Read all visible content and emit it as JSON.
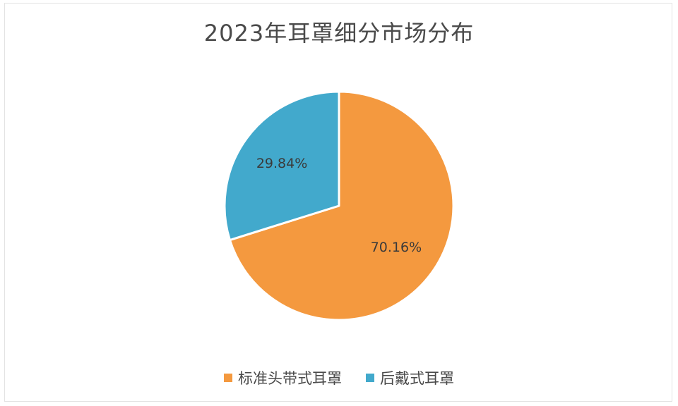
{
  "chart_data": {
    "type": "pie",
    "title": "2023年耳罩细分市场分布",
    "categories": [
      "标准头带式耳罩",
      "后戴式耳罩"
    ],
    "values": [
      70.16,
      29.84
    ],
    "data_labels": [
      "70.16%",
      "29.84%"
    ],
    "colors": [
      "#f4993f",
      "#42a9cc"
    ],
    "legend_position": "bottom"
  }
}
